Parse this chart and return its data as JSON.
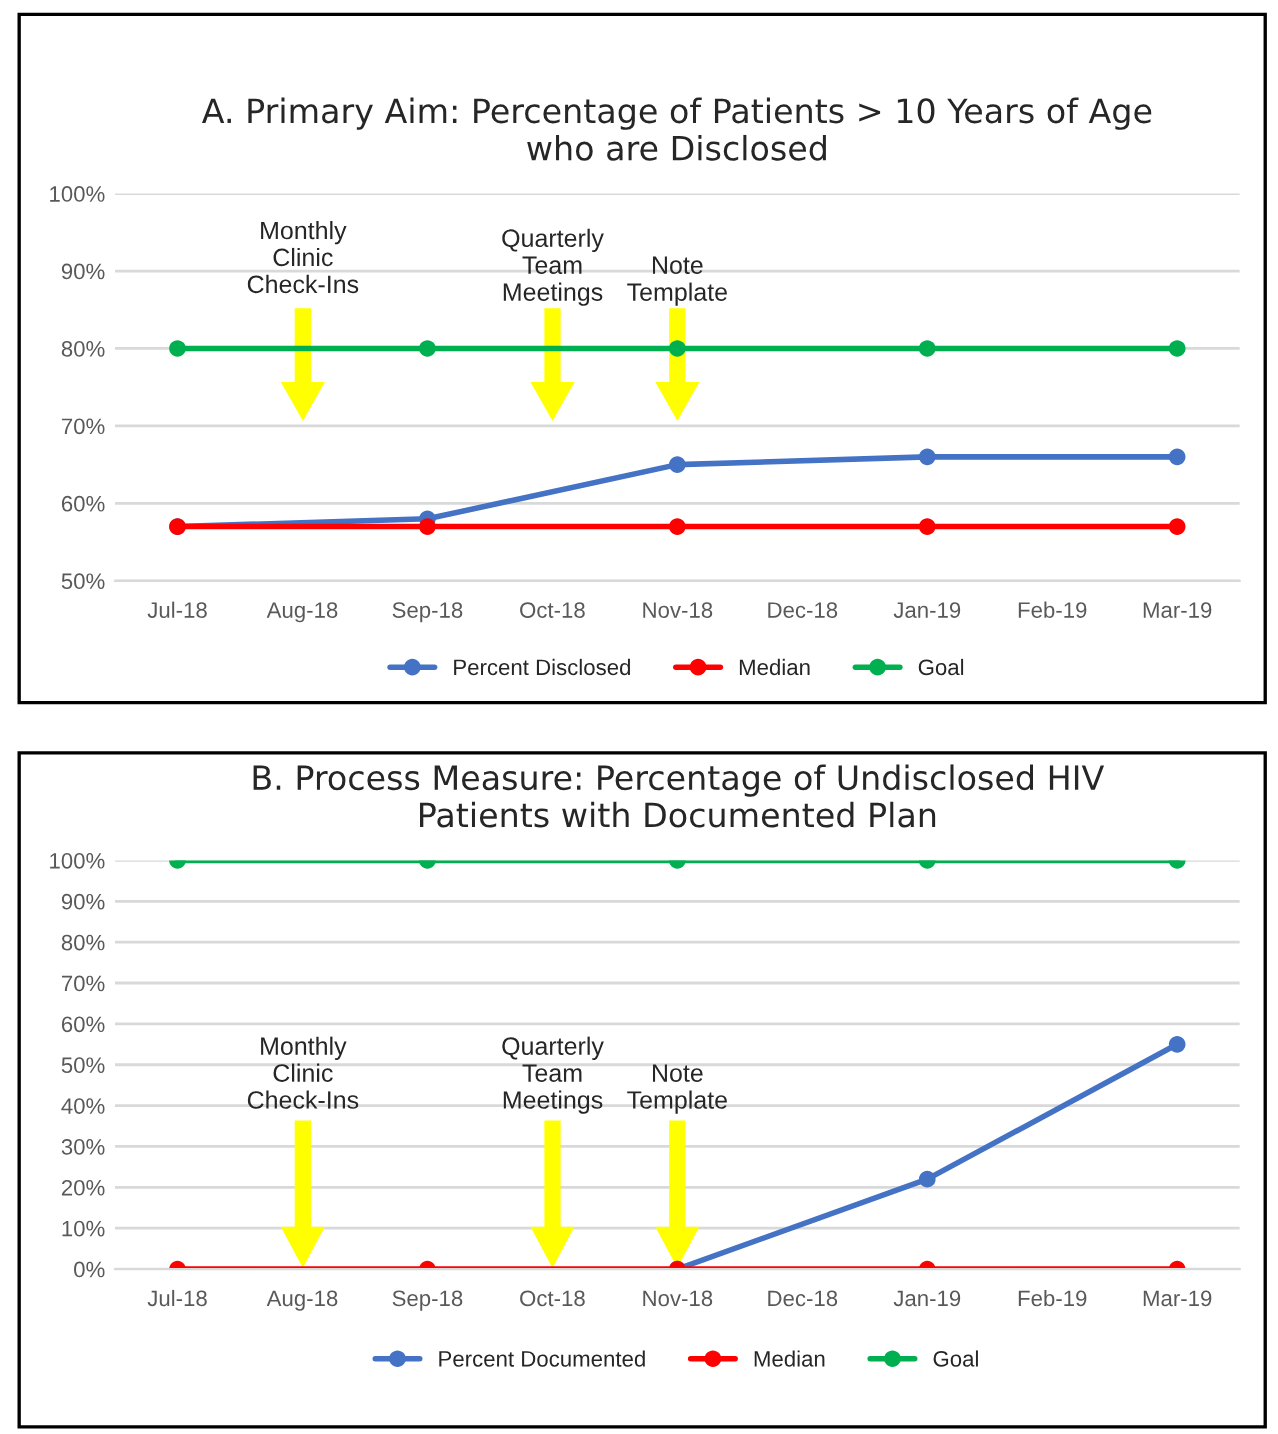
{
  "chart_data": [
    {
      "type": "line",
      "title": "A. Primary Aim: Percentage of Patients > 10 Years of Age\nwho are Disclosed",
      "categories": [
        "Jul-18",
        "Aug-18",
        "Sep-18",
        "Oct-18",
        "Nov-18",
        "Dec-18",
        "Jan-19",
        "Feb-19",
        "Mar-19"
      ],
      "series": [
        {
          "name": "Percent Disclosed",
          "color": "#4472c4",
          "values": [
            57,
            null,
            58,
            null,
            65,
            null,
            66,
            null,
            66
          ]
        },
        {
          "name": "Median",
          "color": "#ff0000",
          "values": [
            57,
            null,
            57,
            null,
            57,
            null,
            57,
            null,
            57
          ]
        },
        {
          "name": "Goal",
          "color": "#00b050",
          "values": [
            80,
            null,
            80,
            null,
            80,
            null,
            80,
            null,
            80
          ]
        }
      ],
      "ylim": [
        50,
        100
      ],
      "yticks": [
        {
          "value": 50,
          "label": "50%"
        },
        {
          "value": 60,
          "label": "60%"
        },
        {
          "value": 70,
          "label": "70%"
        },
        {
          "value": 80,
          "label": "80%"
        },
        {
          "value": 90,
          "label": "90%"
        },
        {
          "value": 100,
          "label": "100%"
        }
      ],
      "annotations": [
        "Monthly\nClinic\nCheck-Ins",
        "Quarterly\nTeam\nMeetings",
        "Note\nTemplate"
      ],
      "grid": "y",
      "legend": "bottom",
      "marker": "circle"
    },
    {
      "type": "line",
      "title": "B. Process Measure: Percentage of Undisclosed HIV\nPatients with Documented Plan",
      "categories": [
        "Jul-18",
        "Aug-18",
        "Sep-18",
        "Oct-18",
        "Nov-18",
        "Dec-18",
        "Jan-19",
        "Feb-19",
        "Mar-19"
      ],
      "series": [
        {
          "name": "Percent Documented",
          "color": "#4472c4",
          "values": [
            null,
            null,
            null,
            null,
            0,
            null,
            22,
            null,
            55
          ]
        },
        {
          "name": "Median",
          "color": "#ff0000",
          "values": [
            0,
            null,
            0,
            null,
            0,
            null,
            0,
            null,
            0
          ]
        },
        {
          "name": "Goal",
          "color": "#00b050",
          "values": [
            100,
            null,
            100,
            null,
            100,
            null,
            100,
            null,
            100
          ]
        }
      ],
      "ylim": [
        0,
        100
      ],
      "yticks": [
        {
          "value": 0,
          "label": "0%"
        },
        {
          "value": 10,
          "label": "10%"
        },
        {
          "value": 20,
          "label": "20%"
        },
        {
          "value": 30,
          "label": "30%"
        },
        {
          "value": 40,
          "label": "40%"
        },
        {
          "value": 50,
          "label": "50%"
        },
        {
          "value": 60,
          "label": "60%"
        },
        {
          "value": 70,
          "label": "70%"
        },
        {
          "value": 80,
          "label": "80%"
        },
        {
          "value": 90,
          "label": "90%"
        },
        {
          "value": 100,
          "label": "100%"
        }
      ],
      "annotations": [
        "Monthly\nClinic\nCheck-Ins",
        "Quarterly\nTeam\nMeetings",
        "Note\nTemplate"
      ],
      "grid": "y",
      "legend": "bottom",
      "marker": "circle"
    }
  ]
}
